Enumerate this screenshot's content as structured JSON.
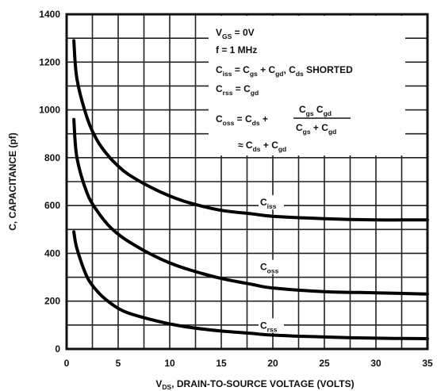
{
  "chart_data": {
    "type": "line",
    "xlabel": {
      "main": "V",
      "sub": "DS",
      "rest": ", DRAIN-TO-SOURCE VOLTAGE (VOLTS)"
    },
    "ylabel": "C, CAPACITANCE (pf)",
    "xlim": [
      0,
      35
    ],
    "ylim": [
      0,
      1400
    ],
    "x_ticks": [
      "0",
      "5",
      "10",
      "15",
      "20",
      "25",
      "30",
      "35"
    ],
    "y_ticks": [
      "0",
      "200",
      "400",
      "600",
      "800",
      "1000",
      "1200",
      "1400"
    ],
    "grid": true,
    "series": [
      {
        "name": "iss",
        "label": {
          "main": "C",
          "sub": "iss"
        },
        "x": [
          0.7,
          1,
          2,
          3,
          4,
          5,
          6,
          8,
          10,
          12,
          15,
          18,
          20,
          25,
          30,
          35
        ],
        "y": [
          1290,
          1130,
          965,
          870,
          810,
          765,
          730,
          680,
          640,
          610,
          580,
          565,
          555,
          545,
          540,
          540
        ]
      },
      {
        "name": "oss",
        "label": {
          "main": "C",
          "sub": "oss"
        },
        "x": [
          0.7,
          1,
          2,
          3,
          4,
          5,
          6,
          8,
          10,
          12,
          15,
          18,
          20,
          25,
          30,
          35
        ],
        "y": [
          960,
          800,
          650,
          575,
          520,
          480,
          450,
          400,
          360,
          330,
          295,
          270,
          255,
          240,
          235,
          230
        ]
      },
      {
        "name": "rss",
        "label": {
          "main": "C",
          "sub": "rss"
        },
        "x": [
          0.7,
          1,
          2,
          3,
          4,
          5,
          6,
          8,
          10,
          12,
          15,
          18,
          20,
          25,
          30,
          35
        ],
        "y": [
          490,
          420,
          300,
          240,
          200,
          170,
          150,
          125,
          105,
          90,
          75,
          65,
          58,
          50,
          45,
          43
        ]
      }
    ],
    "annotations": {
      "line1": [
        {
          "t": "V"
        },
        {
          "t": "GS",
          "sub": true
        },
        {
          "t": " = 0V"
        }
      ],
      "line2": [
        {
          "t": "f = 1 MHz"
        }
      ],
      "line3": [
        {
          "t": "C"
        },
        {
          "t": "iss",
          "sub": true
        },
        {
          "t": " = C"
        },
        {
          "t": "gs",
          "sub": true
        },
        {
          "t": " + C"
        },
        {
          "t": "gd",
          "sub": true
        },
        {
          "t": ", C"
        },
        {
          "t": "ds",
          "sub": true
        },
        {
          "t": " SHORTED"
        }
      ],
      "line4": [
        {
          "t": "C"
        },
        {
          "t": "rss",
          "sub": true
        },
        {
          "t": " = C"
        },
        {
          "t": "gd",
          "sub": true
        }
      ],
      "line5_left": [
        {
          "t": "C"
        },
        {
          "t": "oss",
          "sub": true
        },
        {
          "t": " = C"
        },
        {
          "t": "ds",
          "sub": true
        },
        {
          "t": " +"
        }
      ],
      "frac_num": [
        {
          "t": "C"
        },
        {
          "t": "gs",
          "sub": true
        },
        {
          "t": " C"
        },
        {
          "t": "gd",
          "sub": true
        }
      ],
      "frac_den": [
        {
          "t": "C"
        },
        {
          "t": "gs",
          "sub": true
        },
        {
          "t": " + C"
        },
        {
          "t": "gd",
          "sub": true
        }
      ],
      "line6": [
        {
          "t": "≈ C"
        },
        {
          "t": "ds",
          "sub": true
        },
        {
          "t": " + C"
        },
        {
          "t": "gd",
          "sub": true
        }
      ]
    }
  }
}
